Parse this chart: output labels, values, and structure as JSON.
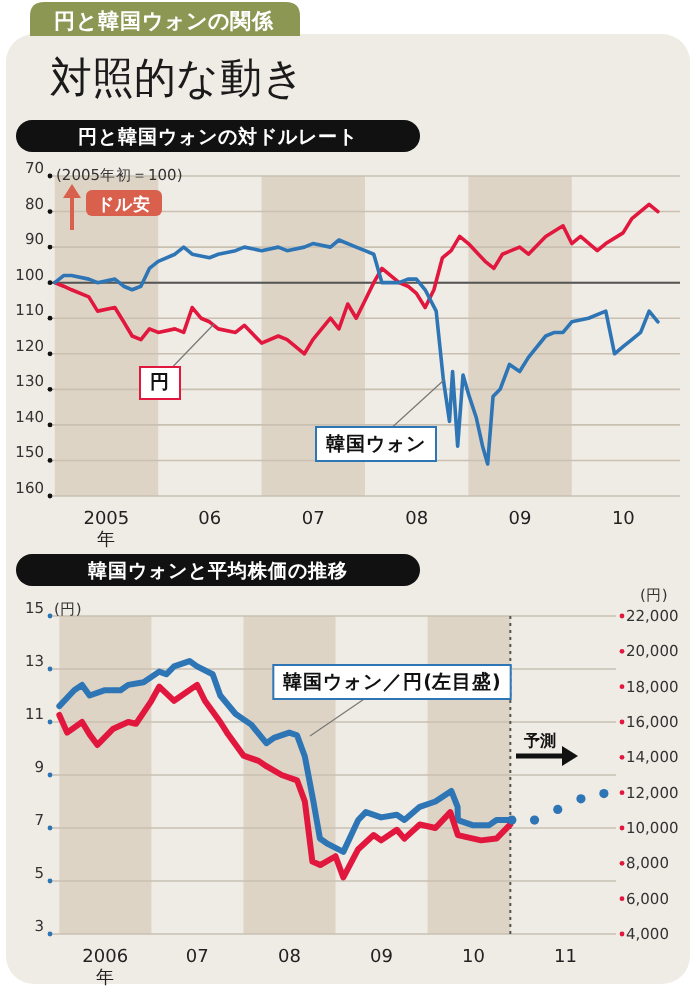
{
  "chart_data": [
    {
      "type": "other",
      "title": "対照的な動き",
      "annotations": [
        "円と韓国ウォンの関係"
      ]
    },
    {
      "type": "line",
      "title": "円と韓国ウォンの対ドルレート",
      "xlim": [
        "2004-12-15",
        "2011-01-18"
      ],
      "ylim": [
        160,
        70
      ],
      "yticks": [
        70,
        80,
        90,
        100,
        110,
        120,
        130,
        140,
        150,
        160
      ],
      "xticks": [
        {
          "value": "2005-07-02",
          "label": "2005\n年"
        },
        {
          "value": "2006-07-02",
          "label": "06"
        },
        {
          "value": "2007-07-02",
          "label": "07"
        },
        {
          "value": "2008-07-02",
          "label": "08"
        },
        {
          "value": "2009-07-02",
          "label": "09"
        },
        {
          "value": "2010-07-02",
          "label": "10"
        }
      ],
      "grid": "y",
      "ref_lines": [
        {
          "axis": "y",
          "value": 100,
          "color": "#555555"
        }
      ],
      "bands": [
        {
          "axis": "x",
          "from": "2005-01-01",
          "to": "2006-01-01",
          "color": "#ddd4c6"
        },
        {
          "axis": "x",
          "from": "2007-01-01",
          "to": "2008-01-01",
          "color": "#ddd4c6"
        },
        {
          "axis": "x",
          "from": "2009-01-01",
          "to": "2010-01-01",
          "color": "#ddd4c6"
        }
      ],
      "annotations": [
        "(2005年初＝100)",
        "ドル安"
      ],
      "series": [
        {
          "name": "円",
          "color": "#e2173e",
          "x": [
            "2005-01",
            "2005-02",
            "2005-03",
            "2005-05",
            "2005-06",
            "2005-08",
            "2005-09",
            "2005-10",
            "2005-11",
            "2005-12",
            "2006-01",
            "2006-03",
            "2006-04",
            "2006-05",
            "2006-06",
            "2006-07",
            "2006-08",
            "2006-10",
            "2006-11",
            "2007-01",
            "2007-03",
            "2007-04",
            "2007-06",
            "2007-07",
            "2007-09",
            "2007-10",
            "2007-11",
            "2007-12",
            "2008-01",
            "2008-02",
            "2008-03",
            "2008-05",
            "2008-06",
            "2008-07",
            "2008-08",
            "2008-09",
            "2008-10",
            "2008-11",
            "2008-12",
            "2009-01",
            "2009-03",
            "2009-04",
            "2009-05",
            "2009-07",
            "2009-08",
            "2009-10",
            "2009-12",
            "2010-01",
            "2010-02",
            "2010-04",
            "2010-05",
            "2010-07",
            "2010-08",
            "2010-10",
            "2010-11"
          ],
          "values": [
            100,
            101,
            102,
            104,
            108,
            107,
            111,
            115,
            116,
            113,
            114,
            113,
            114,
            107,
            110,
            111,
            113,
            114,
            112,
            117,
            115,
            116,
            120,
            116,
            110,
            113,
            106,
            110,
            105,
            100,
            96,
            100,
            101,
            103,
            107,
            102,
            93,
            91,
            87,
            89,
            94,
            96,
            92,
            90,
            92,
            87,
            84,
            89,
            87,
            91,
            89,
            86,
            82,
            78,
            80
          ]
        },
        {
          "name": "韓国ウォン",
          "color": "#2e75b6",
          "x": [
            "2005-01",
            "2005-02",
            "2005-03",
            "2005-05",
            "2005-06",
            "2005-08",
            "2005-09",
            "2005-10",
            "2005-11",
            "2005-12",
            "2006-01",
            "2006-03",
            "2006-04",
            "2006-05",
            "2006-07",
            "2006-08",
            "2006-10",
            "2006-11",
            "2007-01",
            "2007-03",
            "2007-04",
            "2007-06",
            "2007-07",
            "2007-09",
            "2007-10",
            "2007-12",
            "2008-01",
            "2008-02",
            "2008-03",
            "2008-05",
            "2008-06",
            "2008-07",
            "2008-08",
            "2008-09-09",
            "2008-10-04",
            "2008-10-26",
            "2008-11-06",
            "2008-11-24",
            "2008-12-13",
            "2009-01-04",
            "2009-01-29",
            "2009-02-20",
            "2009-03-10",
            "2009-03-29",
            "2009-04-23",
            "2009-05-26",
            "2009-07",
            "2009-08",
            "2009-10",
            "2009-11",
            "2009-12",
            "2010-01",
            "2010-03",
            "2010-05",
            "2010-06",
            "2010-07",
            "2010-08",
            "2010-09",
            "2010-10",
            "2010-11"
          ],
          "values": [
            100,
            98,
            98,
            99,
            100,
            99,
            101,
            102,
            101,
            96,
            94,
            92,
            90,
            92,
            93,
            92,
            91,
            90,
            91,
            90,
            91,
            90,
            89,
            90,
            88,
            90,
            91,
            92,
            100,
            100,
            99,
            99,
            102,
            108,
            127,
            139,
            125,
            146,
            126,
            132,
            138,
            146,
            151,
            132,
            130,
            123,
            125,
            121,
            115,
            114,
            114,
            111,
            110,
            108,
            120,
            118,
            116,
            114,
            108,
            111
          ]
        }
      ]
    },
    {
      "type": "line",
      "title": "韓国ウォンと平均株価の推移",
      "ylabel": "(円)",
      "y2label": "(円)",
      "xlim": [
        "2005-11-25",
        "2012-01-18"
      ],
      "ylim": [
        3,
        15
      ],
      "yticks": [
        3,
        5,
        7,
        9,
        11,
        13,
        15
      ],
      "y2lim": [
        4000,
        22000
      ],
      "y2ticks": [
        {
          "value": 4000,
          "label": "4,000"
        },
        {
          "value": 6000,
          "label": "6,000"
        },
        {
          "value": 8000,
          "label": "8,000"
        },
        {
          "value": 10000,
          "label": "10,000"
        },
        {
          "value": 12000,
          "label": "12,000"
        },
        {
          "value": 14000,
          "label": "14,000"
        },
        {
          "value": 16000,
          "label": "16,000"
        },
        {
          "value": 18000,
          "label": "18,000"
        },
        {
          "value": 20000,
          "label": "20,000"
        },
        {
          "value": 22000,
          "label": "22,000"
        }
      ],
      "xticks": [
        {
          "value": "2006-07-02",
          "label": "2006\n年"
        },
        {
          "value": "2007-07-02",
          "label": "07"
        },
        {
          "value": "2008-07-02",
          "label": "08"
        },
        {
          "value": "2009-07-02",
          "label": "09"
        },
        {
          "value": "2010-07-02",
          "label": "10"
        },
        {
          "value": "2011-07-02",
          "label": "11"
        }
      ],
      "grid": "y",
      "ref_lines": [
        {
          "axis": "x",
          "value": "2010-11-25",
          "line_style": "dotted",
          "color": "#555555"
        }
      ],
      "bands": [
        {
          "axis": "x",
          "from": "2006-01-01",
          "to": "2007-01-01",
          "color": "#ddd4c6"
        },
        {
          "axis": "x",
          "from": "2008-01-01",
          "to": "2009-01-01",
          "color": "#ddd4c6"
        },
        {
          "axis": "x",
          "from": "2010-01-01",
          "to": "2010-11-25",
          "color": "#ddd4c6"
        }
      ],
      "annotations": [
        "予測"
      ],
      "series": [
        {
          "name": "韓国ウォン／円(左目盛)",
          "color": "#2e75b6",
          "x": [
            "2006-01",
            "2006-03",
            "2006-04",
            "2006-05",
            "2006-07",
            "2006-09",
            "2006-10",
            "2006-12",
            "2007-02",
            "2007-03",
            "2007-04",
            "2007-06",
            "2007-07",
            "2007-09",
            "2007-10",
            "2007-12",
            "2008-02",
            "2008-04",
            "2008-05",
            "2008-07",
            "2008-08",
            "2008-09",
            "2008-10-05",
            "2008-10-31",
            "2008-12",
            "2009-02",
            "2009-04",
            "2009-05",
            "2009-07",
            "2009-09",
            "2009-10",
            "2009-12",
            "2010-02",
            "2010-04-05",
            "2010-04-30",
            "2010-05",
            "2010-07",
            "2010-09",
            "2010-10",
            "2010-11-25"
          ],
          "values": [
            11.6,
            12.2,
            12.4,
            12.0,
            12.2,
            12.2,
            12.4,
            12.5,
            12.9,
            12.8,
            13.1,
            13.3,
            13.1,
            12.8,
            12.0,
            11.3,
            10.9,
            10.2,
            10.4,
            10.6,
            10.5,
            9.7,
            8.0,
            6.6,
            6.4,
            6.1,
            7.3,
            7.6,
            7.4,
            7.5,
            7.3,
            7.8,
            8.0,
            8.4,
            7.8,
            7.3,
            7.1,
            7.1,
            7.3,
            7.3
          ]
        },
        {
          "color": "#e2173e",
          "axis": "y2",
          "x": [
            "2006-01",
            "2006-02",
            "2006-04",
            "2006-05",
            "2006-06",
            "2006-08",
            "2006-10",
            "2006-11",
            "2007-01",
            "2007-02",
            "2007-04",
            "2007-05",
            "2007-07",
            "2007-08",
            "2007-10",
            "2007-11",
            "2008-01",
            "2008-03",
            "2008-04",
            "2008-06",
            "2008-08",
            "2008-09",
            "2008-10",
            "2008-11",
            "2009-01",
            "2009-02",
            "2009-04",
            "2009-06",
            "2009-07",
            "2009-09",
            "2009-10",
            "2009-12",
            "2010-02",
            "2010-04",
            "2010-05",
            "2010-07",
            "2010-08",
            "2010-10",
            "2010-11-25"
          ],
          "values": [
            16400,
            15400,
            16000,
            15300,
            14700,
            15600,
            16000,
            15900,
            17200,
            18000,
            17200,
            17500,
            18100,
            17200,
            16000,
            15300,
            14100,
            13800,
            13500,
            13000,
            12700,
            11500,
            8100,
            7900,
            8400,
            7200,
            8800,
            9600,
            9300,
            9900,
            9400,
            10200,
            10000,
            10900,
            9600,
            9400,
            9300,
            9400,
            10200
          ]
        },
        {
          "type": "scatter",
          "marker": "circle",
          "color": "#2e75b6",
          "x": [
            "2010-12",
            "2011-03",
            "2011-06",
            "2011-09",
            "2011-12"
          ],
          "values": [
            7.3,
            7.3,
            7.7,
            8.1,
            8.3
          ]
        }
      ]
    }
  ]
}
